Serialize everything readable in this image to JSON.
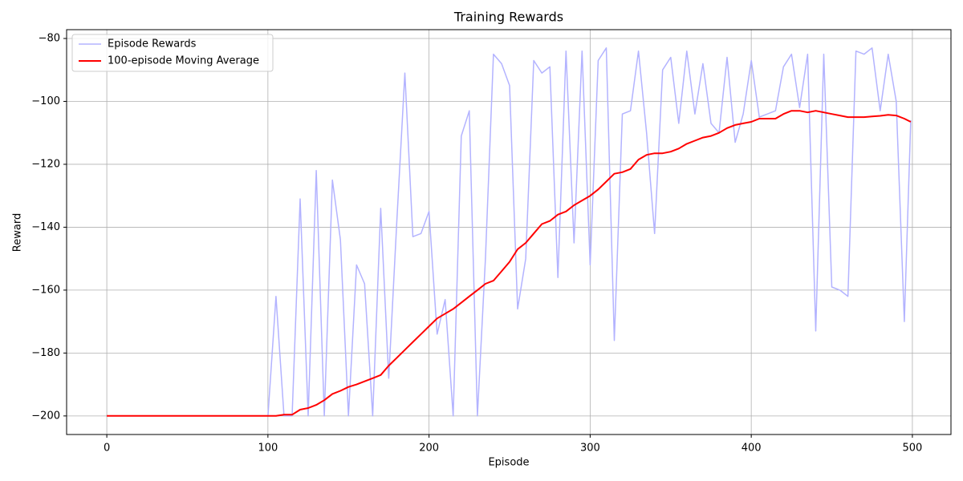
{
  "chart_data": {
    "type": "line",
    "title": "Training Rewards",
    "x_label": "Episode",
    "y_label": "Reward",
    "x": [
      0,
      5,
      10,
      15,
      20,
      25,
      30,
      35,
      40,
      45,
      50,
      55,
      60,
      65,
      70,
      75,
      80,
      85,
      90,
      95,
      100,
      105,
      110,
      115,
      120,
      125,
      130,
      135,
      140,
      145,
      150,
      155,
      160,
      165,
      170,
      175,
      180,
      185,
      190,
      195,
      200,
      205,
      210,
      215,
      220,
      225,
      230,
      235,
      240,
      245,
      250,
      255,
      260,
      265,
      270,
      275,
      280,
      285,
      290,
      295,
      300,
      305,
      310,
      315,
      320,
      325,
      330,
      335,
      340,
      345,
      350,
      355,
      360,
      365,
      370,
      375,
      380,
      385,
      390,
      395,
      400,
      405,
      410,
      415,
      420,
      425,
      430,
      435,
      440,
      445,
      450,
      455,
      460,
      465,
      470,
      475,
      480,
      485,
      490,
      495,
      499
    ],
    "series": [
      {
        "name": "Episode Rewards",
        "color": "#b3b3ff",
        "width": 1.5,
        "values": [
          -200,
          -200,
          -200,
          -200,
          -200,
          -200,
          -200,
          -200,
          -200,
          -200,
          -200,
          -200,
          -200,
          -200,
          -200,
          -200,
          -200,
          -200,
          -200,
          -200,
          -200,
          -162,
          -200,
          -200,
          -131,
          -200,
          -122,
          -200,
          -125,
          -144,
          -200,
          -152,
          -158,
          -200,
          -134,
          -188,
          -138,
          -91,
          -143,
          -142,
          -135,
          -174,
          -163,
          -200,
          -111,
          -103,
          -200,
          -150,
          -85,
          -88,
          -95,
          -166,
          -150,
          -87,
          -91,
          -89,
          -156,
          -84,
          -145,
          -84,
          -152,
          -87,
          -83,
          -176,
          -104,
          -103,
          -84,
          -110,
          -142,
          -90,
          -86,
          -107,
          -84,
          -104,
          -88,
          -107,
          -110,
          -86,
          -113,
          -104,
          -87,
          -105,
          -104,
          -103,
          -89,
          -85,
          -102,
          -85,
          -173,
          -85,
          -159,
          -160,
          -162,
          -84,
          -85,
          -83,
          -103,
          -85,
          -100,
          -170,
          -106
        ]
      },
      {
        "name": "100-episode Moving Average",
        "color": "#ff0000",
        "width": 2,
        "values": [
          -200,
          -200,
          -200,
          -200,
          -200,
          -200,
          -200,
          -200,
          -200,
          -200,
          -200,
          -200,
          -200,
          -200,
          -200,
          -200,
          -200,
          -200,
          -200,
          -200,
          -200,
          -200,
          -199.6,
          -199.6,
          -198,
          -197.5,
          -196.5,
          -195,
          -193,
          -192,
          -190.8,
          -190,
          -189,
          -188,
          -187,
          -184,
          -181.5,
          -179,
          -176.5,
          -174,
          -171.5,
          -169,
          -167.5,
          -166,
          -164,
          -162,
          -160,
          -158,
          -157,
          -154,
          -151,
          -147,
          -145,
          -142,
          -139,
          -138,
          -136,
          -135,
          -133,
          -131.5,
          -130,
          -128,
          -125.5,
          -123,
          -122.5,
          -121.5,
          -118.5,
          -117,
          -116.5,
          -116.5,
          -116,
          -115,
          -113.5,
          -112.5,
          -111.5,
          -111,
          -110,
          -108.5,
          -107.5,
          -107,
          -106.5,
          -105.5,
          -105.5,
          -105.5,
          -104,
          -103,
          -103,
          -103.5,
          -103,
          -103.5,
          -104,
          -104.5,
          -105,
          -105,
          -105,
          -104.8,
          -104.6,
          -104.3,
          -104.5,
          -105.5,
          -106.5
        ]
      }
    ],
    "xlim": [
      -24.95,
      523.95
    ],
    "ylim": [
      -205.9,
      -77.2
    ],
    "xticks": [
      0,
      100,
      200,
      300,
      400,
      500
    ],
    "yticks": [
      {
        "value": -200,
        "label": "−200"
      },
      {
        "value": -180,
        "label": "−180"
      },
      {
        "value": -160,
        "label": "−160"
      },
      {
        "value": -140,
        "label": "−140"
      },
      {
        "value": -120,
        "label": "−120"
      },
      {
        "value": -100,
        "label": "−100"
      },
      {
        "value": -80,
        "label": "−80"
      }
    ],
    "grid": true,
    "legend": "upper left"
  }
}
